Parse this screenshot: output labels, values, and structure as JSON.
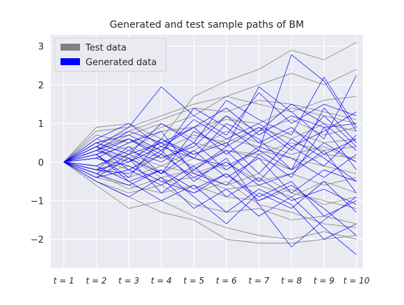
{
  "chart_data": {
    "type": "line",
    "title": "Generated and test sample paths of BM",
    "xlabel": "",
    "ylabel": "",
    "categories": [
      "t = 1",
      "t = 2",
      "t = 3",
      "t = 4",
      "t = 5",
      "t = 6",
      "t = 7",
      "t = 8",
      "t = 9",
      "t = 10"
    ],
    "x": [
      1,
      2,
      3,
      4,
      5,
      6,
      7,
      8,
      9,
      10
    ],
    "ylim": [
      -2.75,
      3.3
    ],
    "yticks": [
      -2,
      -1,
      0,
      1,
      2,
      3
    ],
    "ytick_labels": [
      "−2",
      "−1",
      "0",
      "1",
      "2",
      "3"
    ],
    "grid": true,
    "legend_position": "top-left",
    "colors": {
      "background": "#eaeaf2",
      "grid": "#ffffff",
      "test": "#808080",
      "generated": "#0000ff"
    },
    "series": [
      {
        "name": "Test data",
        "color": "#808080",
        "paths": [
          [
            0,
            0.9,
            1.0,
            0.6,
            1.7,
            2.1,
            2.4,
            2.9,
            2.65,
            3.1
          ],
          [
            0,
            0.8,
            0.9,
            1.2,
            1.5,
            1.7,
            2.0,
            2.3,
            2.0,
            2.4
          ],
          [
            0,
            0.7,
            0.5,
            0.9,
            1.2,
            1.7,
            1.5,
            1.3,
            1.6,
            1.7
          ],
          [
            0,
            0.5,
            0.8,
            1.1,
            1.4,
            1.3,
            1.6,
            1.5,
            1.3,
            1.1
          ],
          [
            0,
            0.6,
            0.3,
            0.8,
            0.9,
            1.1,
            1.0,
            1.4,
            1.2,
            1.0
          ],
          [
            0,
            0.4,
            0.6,
            0.3,
            0.7,
            0.5,
            0.9,
            0.6,
            1.0,
            0.8
          ],
          [
            0,
            0.3,
            0.1,
            0.5,
            0.2,
            0.6,
            0.4,
            0.8,
            0.5,
            0.6
          ],
          [
            0,
            0.2,
            0.4,
            0.1,
            0.5,
            0.3,
            0.2,
            0.5,
            0.3,
            0.4
          ],
          [
            0,
            0.1,
            -0.2,
            0.2,
            -0.1,
            0.3,
            0.1,
            -0.2,
            0.2,
            0.1
          ],
          [
            0,
            -0.1,
            0.2,
            -0.3,
            0.1,
            -0.2,
            0.3,
            0.1,
            -0.1,
            -0.3
          ],
          [
            0,
            -0.2,
            -0.4,
            -0.1,
            -0.3,
            0.0,
            -0.5,
            -0.3,
            -0.6,
            -0.4
          ],
          [
            0,
            -0.3,
            -0.1,
            -0.5,
            -0.4,
            -0.7,
            -0.6,
            -0.9,
            -0.5,
            -0.8
          ],
          [
            0,
            -0.4,
            -0.6,
            -0.8,
            -0.6,
            -0.9,
            -1.0,
            -0.7,
            -1.1,
            -0.9
          ],
          [
            0,
            -0.5,
            -0.8,
            -0.6,
            -1.1,
            -1.3,
            -1.2,
            -1.5,
            -1.4,
            -1.6
          ],
          [
            0,
            -0.6,
            -1.2,
            -1.0,
            -1.4,
            -1.7,
            -1.9,
            -2.0,
            -1.8,
            -2.0
          ],
          [
            0,
            -0.5,
            -0.9,
            -1.3,
            -1.5,
            -2.0,
            -2.1,
            -2.1,
            -2.0,
            -1.9
          ],
          [
            0,
            0.3,
            0.7,
            1.0,
            0.6,
            1.2,
            0.8,
            1.1,
            0.7,
            0.9
          ],
          [
            0,
            -0.2,
            0.1,
            -0.4,
            -0.8,
            -0.5,
            -1.1,
            -1.3,
            -1.6,
            -1.7
          ],
          [
            0,
            0.5,
            0.2,
            -0.1,
            0.3,
            0.8,
            0.5,
            0.2,
            0.4,
            0.0
          ],
          [
            0,
            -0.3,
            -0.7,
            -0.4,
            -0.2,
            -0.6,
            -0.3,
            -0.8,
            -1.0,
            -1.2
          ]
        ]
      },
      {
        "name": "Generated data",
        "color": "#0000ff",
        "paths": [
          [
            0,
            0.4,
            0.9,
            1.95,
            1.2,
            0.7,
            1.8,
            1.0,
            1.5,
            1.2
          ],
          [
            0,
            0.3,
            0.6,
            0.2,
            1.4,
            0.9,
            0.3,
            2.78,
            2.1,
            0.8
          ],
          [
            0,
            0.5,
            0.2,
            1.0,
            0.5,
            1.6,
            1.1,
            0.7,
            2.2,
            0.9
          ],
          [
            0,
            -0.2,
            0.4,
            -0.3,
            0.8,
            0.4,
            1.95,
            1.3,
            0.6,
            2.25
          ],
          [
            0,
            0.2,
            -0.4,
            0.6,
            0.1,
            1.0,
            0.6,
            -0.2,
            1.4,
            0.5
          ],
          [
            0,
            -0.4,
            0.1,
            -0.8,
            -0.2,
            0.3,
            -0.5,
            0.4,
            -0.1,
            0.7
          ],
          [
            0,
            0.6,
            1.0,
            0.4,
            0.9,
            0.2,
            0.8,
            1.5,
            1.0,
            0.3
          ],
          [
            0,
            0.1,
            0.5,
            0.8,
            -0.3,
            -0.6,
            0.2,
            -0.4,
            0.9,
            -0.2
          ],
          [
            0,
            -0.3,
            -0.6,
            -0.2,
            -0.9,
            -1.6,
            -0.8,
            -1.2,
            -0.5,
            -1.3
          ],
          [
            0,
            0.4,
            -0.2,
            0.3,
            -0.5,
            0.1,
            -1.1,
            -2.2,
            -1.5,
            -0.9
          ],
          [
            0,
            -0.5,
            -0.9,
            -0.4,
            -1.2,
            -0.7,
            -1.4,
            -0.9,
            -1.7,
            -2.4
          ],
          [
            0,
            0.2,
            -0.5,
            -1.0,
            -0.6,
            -1.3,
            -0.7,
            -1.1,
            -2.0,
            -1.6
          ],
          [
            0,
            -0.1,
            0.3,
            0.0,
            0.5,
            -0.2,
            0.4,
            0.1,
            -0.4,
            0.2
          ],
          [
            0,
            0.3,
            0.0,
            0.6,
            0.2,
            0.5,
            -0.3,
            0.6,
            0.1,
            -0.5
          ],
          [
            0,
            -0.2,
            -0.3,
            0.2,
            -0.4,
            0.0,
            -0.6,
            -0.3,
            0.3,
            -0.8
          ],
          [
            0,
            0.5,
            0.7,
            0.3,
            1.1,
            0.6,
            1.0,
            0.4,
            0.8,
            1.3
          ],
          [
            0,
            -0.4,
            -0.2,
            -0.6,
            -0.1,
            -0.9,
            -0.4,
            -1.0,
            -0.7,
            -1.1
          ],
          [
            0,
            0.1,
            -0.1,
            -0.5,
            -0.8,
            -0.3,
            -1.0,
            -0.6,
            -1.2,
            -1.9
          ],
          [
            0,
            0.2,
            0.6,
            0.1,
            0.4,
            1.2,
            0.5,
            0.9,
            0.2,
            0.6
          ],
          [
            0,
            -0.3,
            0.2,
            0.5,
            -0.2,
            0.4,
            0.9,
            0.3,
            1.2,
            0.4
          ],
          [
            0,
            0.4,
            0.1,
            -0.3,
            0.3,
            -0.4,
            0.1,
            -0.8,
            -0.2,
            -0.5
          ],
          [
            0,
            -0.1,
            -0.5,
            -0.2,
            -0.7,
            -0.3,
            -0.9,
            -0.5,
            -1.4,
            -1.0
          ],
          [
            0,
            0.3,
            0.8,
            0.5,
            0.9,
            1.4,
            0.7,
            1.2,
            0.9,
            1.0
          ],
          [
            0,
            -0.2,
            0.0,
            0.4,
            0.1,
            -0.1,
            0.3,
            -0.2,
            0.5,
            0.0
          ]
        ]
      }
    ]
  }
}
